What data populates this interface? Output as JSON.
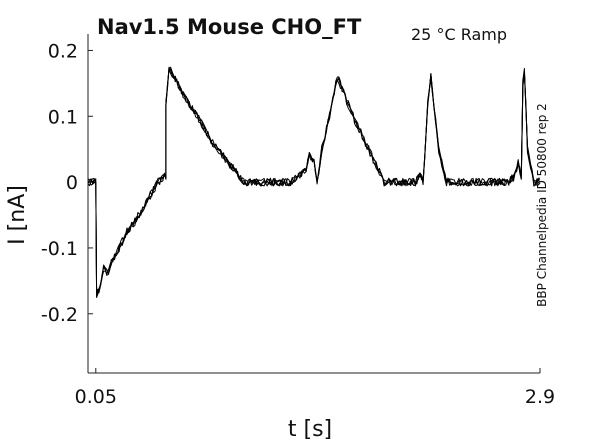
{
  "chart_data": {
    "type": "line",
    "title_main": "Nav1.5  Mouse  CHO_FT",
    "title_sub": "25 °C  Ramp",
    "xlabel": "t [s]",
    "ylabel": "I [nA]",
    "side_note": "BBP Channelpedia ID 50800 rep 2",
    "xlim": [
      0.0,
      2.9
    ],
    "ylim": [
      -0.29,
      0.225
    ],
    "x_ticks": [
      0.05,
      2.9
    ],
    "x_tick_labels": [
      "0.05",
      "2.9"
    ],
    "y_ticks": [
      0.2,
      0.1,
      0,
      -0.1,
      -0.2
    ],
    "y_tick_labels": [
      "0.2",
      "0.1",
      "0",
      "-0.1",
      "-0.2"
    ],
    "grid": false,
    "line_color": "#000000",
    "series": [
      {
        "x": [
          0.0,
          0.02,
          0.04,
          0.05,
          0.055,
          0.07,
          0.1,
          0.13,
          0.15,
          0.2,
          0.25,
          0.3,
          0.35,
          0.4,
          0.45,
          0.5,
          0.5,
          0.52,
          0.55,
          0.62,
          0.7,
          0.8,
          0.9,
          1.0,
          1.05,
          1.1,
          1.2,
          1.3,
          1.4,
          1.42,
          1.45,
          1.47,
          1.5,
          1.55,
          1.6,
          1.7,
          1.8,
          1.9,
          2.0,
          2.05,
          2.1,
          2.13,
          2.15,
          2.16,
          2.18,
          2.2,
          2.25,
          2.3,
          2.35,
          2.4,
          2.5,
          2.6,
          2.7,
          2.74,
          2.76,
          2.78,
          2.79,
          2.8,
          2.82,
          2.86,
          2.9
        ],
        "values": [
          0.0,
          0.0,
          0.0,
          0.0,
          -0.17,
          -0.165,
          -0.13,
          -0.14,
          -0.12,
          -0.1,
          -0.075,
          -0.06,
          -0.04,
          -0.02,
          0.0,
          0.01,
          0.12,
          0.175,
          0.16,
          0.13,
          0.1,
          0.06,
          0.03,
          0.0,
          0.0,
          0.0,
          0.0,
          0.0,
          0.02,
          0.04,
          0.035,
          0.0,
          0.05,
          0.1,
          0.16,
          0.1,
          0.05,
          0.0,
          0.0,
          0.0,
          0.0,
          0.01,
          0.0,
          0.04,
          0.12,
          0.16,
          0.05,
          0.0,
          0.0,
          0.0,
          0.0,
          0.0,
          0.0,
          0.01,
          0.03,
          0.01,
          0.15,
          0.17,
          0.05,
          0.0,
          0.0
        ]
      }
    ]
  }
}
